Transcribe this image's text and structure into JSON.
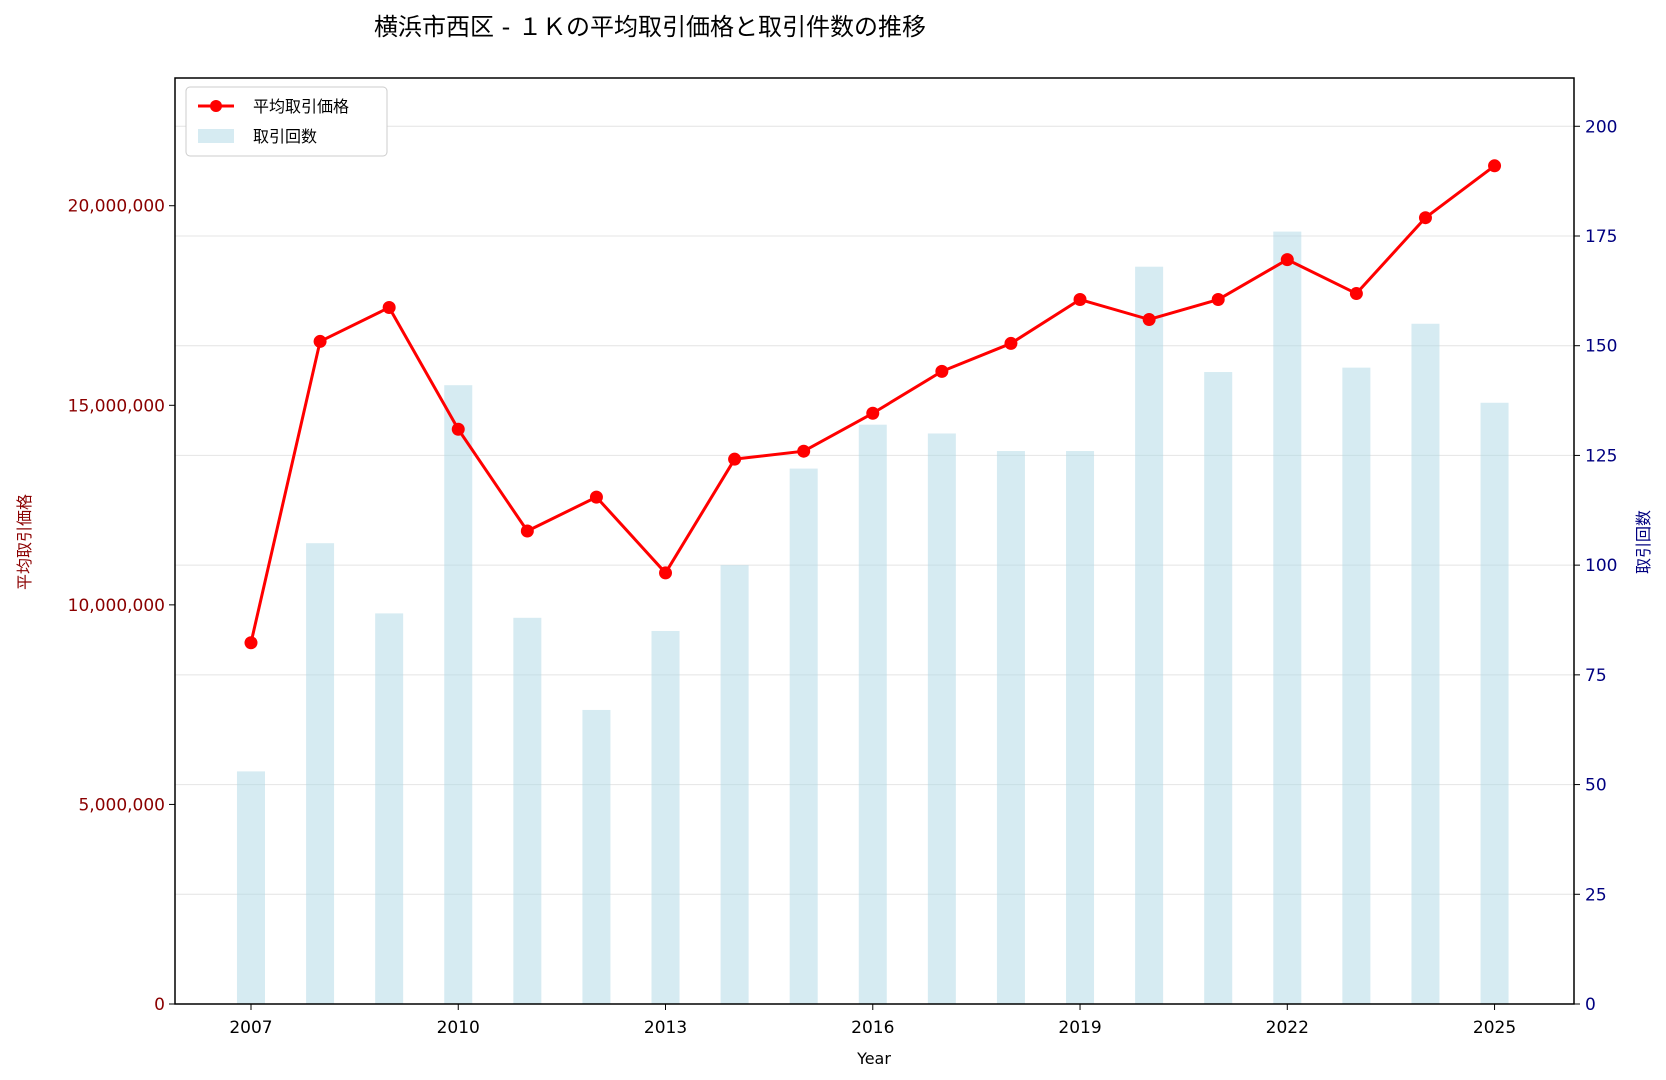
{
  "chart_data": {
    "type": "bar+line",
    "title": "横浜市西区 - １Ｋの平均取引価格と取引件数の推移",
    "xlabel": "Year",
    "ylabel_left": "平均取引価格",
    "ylabel_right": "取引回数",
    "x": [
      2007,
      2008,
      2009,
      2010,
      2011,
      2012,
      2013,
      2014,
      2015,
      2016,
      2017,
      2018,
      2019,
      2020,
      2021,
      2022,
      2023,
      2024,
      2025
    ],
    "x_ticks": [
      2007,
      2010,
      2013,
      2016,
      2019,
      2022,
      2025
    ],
    "series": [
      {
        "name": "平均取引価格",
        "axis": "left",
        "kind": "line",
        "color": "#ff0000",
        "values": [
          9050000,
          16600000,
          17450000,
          14400000,
          11850000,
          12700000,
          10800000,
          13650000,
          13850000,
          14800000,
          15850000,
          16550000,
          17650000,
          17150000,
          17650000,
          18650000,
          17800000,
          19700000,
          21000000
        ]
      },
      {
        "name": "取引回数",
        "axis": "right",
        "kind": "bar",
        "color": "#add8e6",
        "values": [
          53,
          105,
          89,
          141,
          88,
          67,
          85,
          100,
          122,
          132,
          130,
          126,
          126,
          168,
          144,
          176,
          145,
          155,
          137
        ]
      }
    ],
    "ylim_left": [
      0,
      23200000
    ],
    "ylim_right": [
      0,
      211
    ],
    "yticks_left": [
      0,
      5000000,
      10000000,
      15000000,
      20000000
    ],
    "yticks_left_labels": [
      "0",
      "5,000,000",
      "10,000,000",
      "15,000,000",
      "20,000,000"
    ],
    "yticks_right": [
      0,
      25,
      50,
      75,
      100,
      125,
      150,
      175,
      200
    ],
    "xlim": [
      2005.9,
      2026.15
    ],
    "grid": true,
    "legend_position": "top-left"
  }
}
